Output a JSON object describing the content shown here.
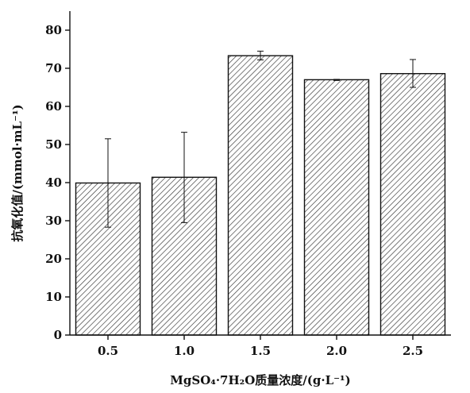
{
  "chart_data": {
    "type": "bar",
    "categories": [
      "0.5",
      "1.0",
      "1.5",
      "2.0",
      "2.5"
    ],
    "values": [
      39.9,
      41.4,
      73.3,
      67.0,
      68.6
    ],
    "error_low": [
      28.3,
      29.5,
      72.2,
      66.8,
      65.0
    ],
    "error_high": [
      51.5,
      53.2,
      74.5,
      67.1,
      72.3
    ],
    "xlabel": "MgSO₄·7H₂O质量浓度/(g·L⁻¹)",
    "ylabel": "抗氧化值/(mmol·mL⁻¹)",
    "ylim": [
      0,
      85
    ],
    "yticks": [
      0,
      10,
      20,
      30,
      40,
      50,
      60,
      70,
      80
    ],
    "grid": false,
    "legend": "none",
    "bar_fill": "diagonal hatch",
    "colors": {
      "stroke": "#111111",
      "hatch": "#333333",
      "background": "#ffffff"
    }
  }
}
